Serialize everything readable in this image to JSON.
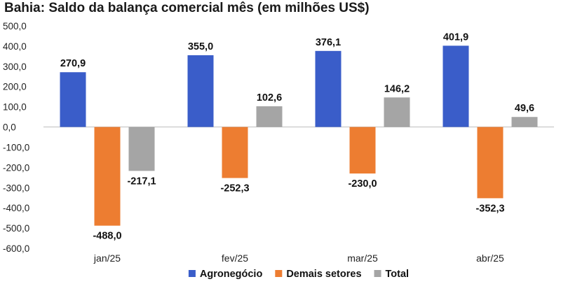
{
  "chart_data": {
    "type": "bar",
    "title": "Bahia: Saldo da balança comercial mês (em milhões US$)",
    "categories": [
      "jan/25",
      "fev/25",
      "mar/25",
      "abr/25"
    ],
    "series": [
      {
        "name": "Agronegócio",
        "color": "#3a5dc9",
        "values": [
          270.9,
          355.0,
          376.1,
          401.9
        ],
        "labels": [
          "270,9",
          "355,0",
          "376,1",
          "401,9"
        ]
      },
      {
        "name": "Demais setores",
        "color": "#ed7d31",
        "values": [
          -488.0,
          -252.3,
          -230.0,
          -352.3
        ],
        "labels": [
          "-488,0",
          "-252,3",
          "-230,0",
          "-352,3"
        ]
      },
      {
        "name": "Total",
        "color": "#a5a5a5",
        "values": [
          -217.1,
          102.6,
          146.2,
          49.6
        ],
        "labels": [
          "-217,1",
          "102,6",
          "146,2",
          "49,6"
        ]
      }
    ],
    "ylim": [
      -600,
      500
    ],
    "yticks": [
      500,
      400,
      300,
      200,
      100,
      0,
      -100,
      -200,
      -300,
      -400,
      -500,
      -600
    ],
    "ytick_labels": [
      "500,0",
      "400,0",
      "300,0",
      "200,0",
      "100,0",
      "0,0",
      "-100,0",
      "-200,0",
      "-300,0",
      "-400,0",
      "-500,0",
      "-600,0"
    ],
    "xlabel": "",
    "ylabel": "",
    "grid": false,
    "legend": "bottom"
  }
}
